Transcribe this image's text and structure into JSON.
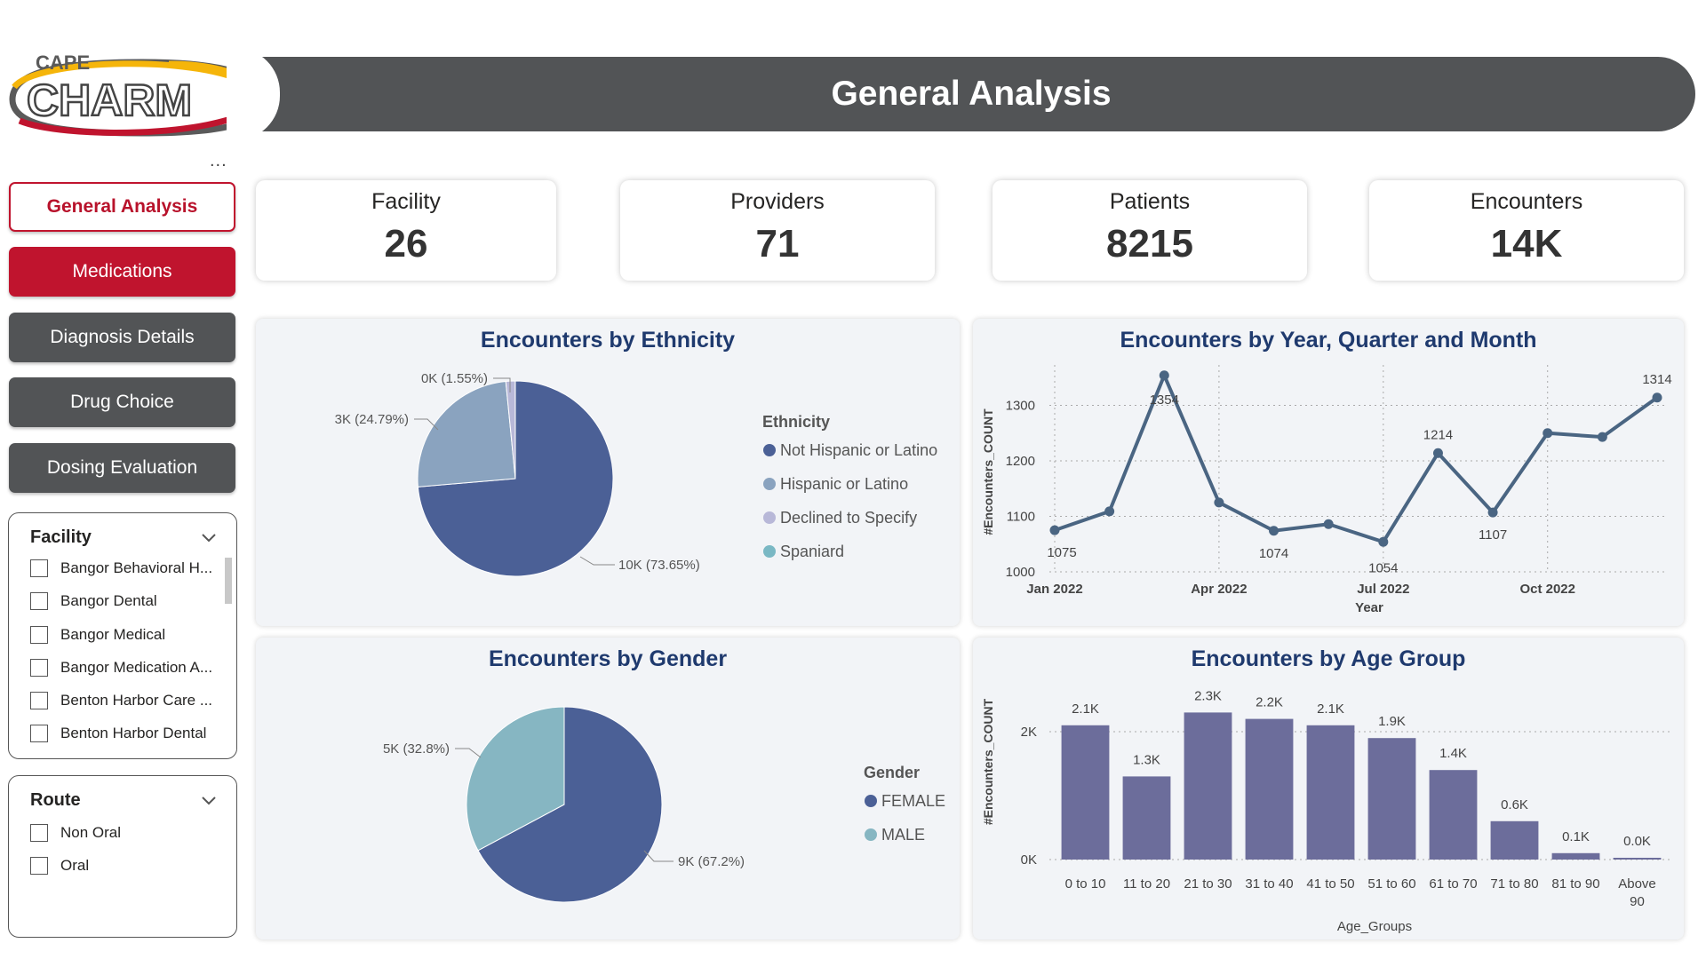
{
  "brand": {
    "top": "CAPE",
    "main": "CHARM"
  },
  "header": {
    "title": "General Analysis",
    "more": "..."
  },
  "nav": {
    "general": "General Analysis",
    "medications": "Medications",
    "diagnosis": "Diagnosis Details",
    "drug_choice": "Drug Choice",
    "dosing": "Dosing Evaluation"
  },
  "facility_slicer": {
    "title": "Facility",
    "items": [
      "Bangor Behavioral H...",
      "Bangor Dental",
      "Bangor Medical",
      "Bangor Medication A...",
      "Benton Harbor Care ...",
      "Benton Harbor Dental"
    ]
  },
  "route_slicer": {
    "title": "Route",
    "items": [
      "Non Oral",
      "Oral"
    ]
  },
  "kpis": [
    {
      "label": "Facility",
      "value": "26"
    },
    {
      "label": "Providers",
      "value": "71"
    },
    {
      "label": "Patients",
      "value": "8215"
    },
    {
      "label": "Encounters",
      "value": "14K"
    }
  ],
  "colors": {
    "header": "#525456",
    "brand_red": "#c0142e",
    "title_blue": "#1f3a6e",
    "pie_dark": "#4b6096",
    "pie_light": "#8aa3bf",
    "pie_lavender": "#b8b8d8",
    "pie_teal": "#7ab8c4",
    "gender_light": "#86b6c2",
    "line": "#4a6582",
    "bar": "#6c6d9b"
  },
  "chart_data": [
    {
      "type": "pie",
      "title": "Encounters by Ethnicity",
      "legend_title": "Ethnicity",
      "legend_position": "right",
      "slices": [
        {
          "name": "Not Hispanic or Latino",
          "value": 73.65,
          "label": "10K (73.65%)",
          "color": "#4b6096"
        },
        {
          "name": "Hispanic or Latino",
          "value": 24.79,
          "label": "3K (24.79%)",
          "color": "#8aa3bf"
        },
        {
          "name": "Declined to Specify",
          "value": 1.55,
          "label": "0K (1.55%)",
          "color": "#b8b8d8"
        },
        {
          "name": "Spaniard",
          "value": 0.01,
          "label": "",
          "color": "#7ab8c4"
        }
      ]
    },
    {
      "type": "line",
      "title": "Encounters by Year, Quarter and Month",
      "xlabel": "Year",
      "ylabel": "#Encounters_COUNT",
      "ylim": [
        1000,
        1360
      ],
      "yticks": [
        1000,
        1100,
        1200,
        1300
      ],
      "xticks": [
        "Jan 2022",
        "Apr 2022",
        "Jul 2022",
        "Oct 2022"
      ],
      "x": [
        "Jan 2022",
        "Feb 2022",
        "Mar 2022",
        "Apr 2022",
        "May 2022",
        "Jun 2022",
        "Jul 2022",
        "Aug 2022",
        "Sep 2022",
        "Oct 2022",
        "Nov 2022",
        "Dec 2022"
      ],
      "values": [
        1075,
        1109,
        1354,
        1125,
        1074,
        1086,
        1054,
        1214,
        1107,
        1250,
        1243,
        1314
      ],
      "point_labels": [
        "1075",
        "",
        "1354",
        "",
        "1074",
        "",
        "1054",
        "1214",
        "1107",
        "",
        "",
        "1314"
      ],
      "grid": true
    },
    {
      "type": "pie",
      "title": "Encounters by Gender",
      "legend_title": "Gender",
      "legend_position": "right",
      "slices": [
        {
          "name": "FEMALE",
          "value": 67.2,
          "label": "9K (67.2%)",
          "color": "#4b6096"
        },
        {
          "name": "MALE",
          "value": 32.8,
          "label": "5K (32.8%)",
          "color": "#86b6c2"
        }
      ]
    },
    {
      "type": "bar",
      "title": "Encounters by Age Group",
      "xlabel": "Age_Groups",
      "ylabel": "#Encounters_COUNT",
      "ylim": [
        0,
        2500
      ],
      "yticks": [
        "0K",
        "2K"
      ],
      "categories": [
        "0 to 10",
        "11 to 20",
        "21 to 30",
        "31 to 40",
        "41 to 50",
        "51 to 60",
        "61 to 70",
        "71 to 80",
        "81 to 90",
        "Above 90"
      ],
      "values": [
        2100,
        1300,
        2300,
        2200,
        2100,
        1900,
        1400,
        600,
        100,
        20
      ],
      "data_labels": [
        "2.1K",
        "1.3K",
        "2.3K",
        "2.2K",
        "2.1K",
        "1.9K",
        "1.4K",
        "0.6K",
        "0.1K",
        "0.0K"
      ],
      "grid": true
    }
  ]
}
